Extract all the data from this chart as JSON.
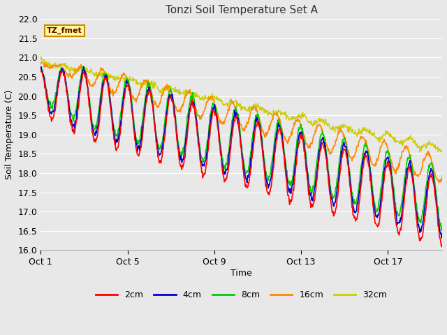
{
  "title": "Tonzi Soil Temperature Set A",
  "xlabel": "Time",
  "ylabel": "Soil Temperature (C)",
  "ylim": [
    16.0,
    22.0
  ],
  "yticks": [
    16.0,
    16.5,
    17.0,
    17.5,
    18.0,
    18.5,
    19.0,
    19.5,
    20.0,
    20.5,
    21.0,
    21.5,
    22.0
  ],
  "xtick_labels": [
    "Oct 1",
    "Oct 5",
    "Oct 9",
    "Oct 13",
    "Oct 17"
  ],
  "xtick_positions": [
    0,
    4,
    8,
    12,
    16
  ],
  "xlim": [
    0,
    18.5
  ],
  "bg_color": "#e8e8e8",
  "plot_bg_color": "#e8e8e8",
  "grid_color": "#ffffff",
  "line_colors": [
    "#ff0000",
    "#0000cc",
    "#00cc00",
    "#ff8800",
    "#cccc00"
  ],
  "line_labels": [
    "2cm",
    "4cm",
    "8cm",
    "16cm",
    "32cm"
  ],
  "legend_label": "TZ_fmet",
  "legend_bg": "#ffff99",
  "legend_border": "#cc8800",
  "n_days": 19,
  "n_points_per_day": 48
}
